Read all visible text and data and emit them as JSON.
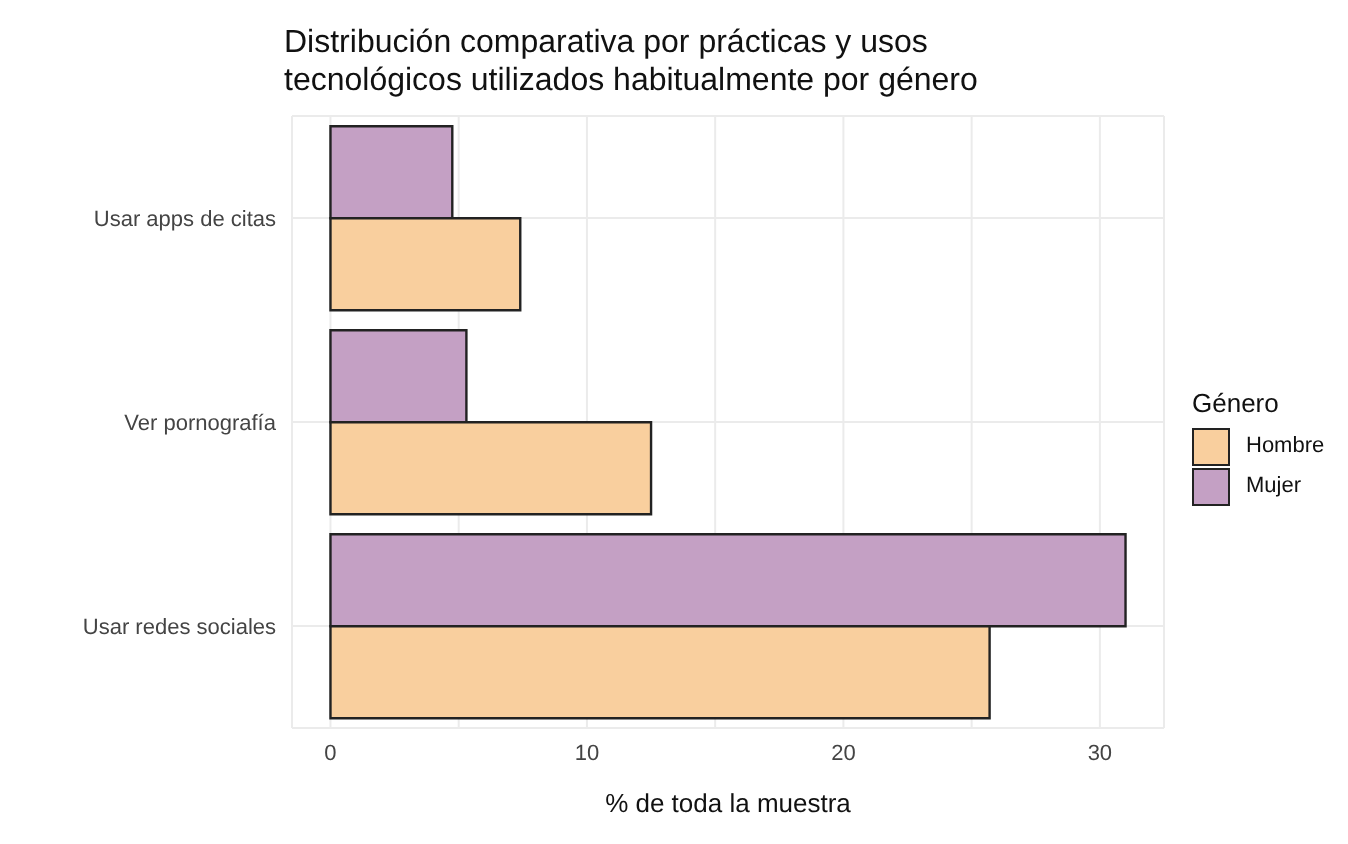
{
  "chart_data": {
    "type": "bar",
    "orientation": "horizontal",
    "title": "Distribución comparativa por prácticas y usos\ntecnológicos utilizados habitualmente por género",
    "xlabel": "% de toda la muestra",
    "legend_title": "Género",
    "legend": "right",
    "grid": true,
    "categories": [
      "Usar apps de citas",
      "Ver pornografía",
      "Usar redes sociales"
    ],
    "series": [
      {
        "name": "Hombre",
        "color": "#f9cf9e",
        "values": [
          7.4,
          12.5,
          25.7
        ]
      },
      {
        "name": "Mujer",
        "color": "#c4a0c4",
        "values": [
          4.75,
          5.3,
          31
        ]
      }
    ],
    "xlim": [
      -1.5,
      32.5
    ],
    "xticks": [
      0,
      {
        "value": 5,
        "label": null
      },
      10,
      {
        "value": 15,
        "label": null
      },
      20,
      {
        "value": 25,
        "label": null
      },
      30
    ]
  }
}
